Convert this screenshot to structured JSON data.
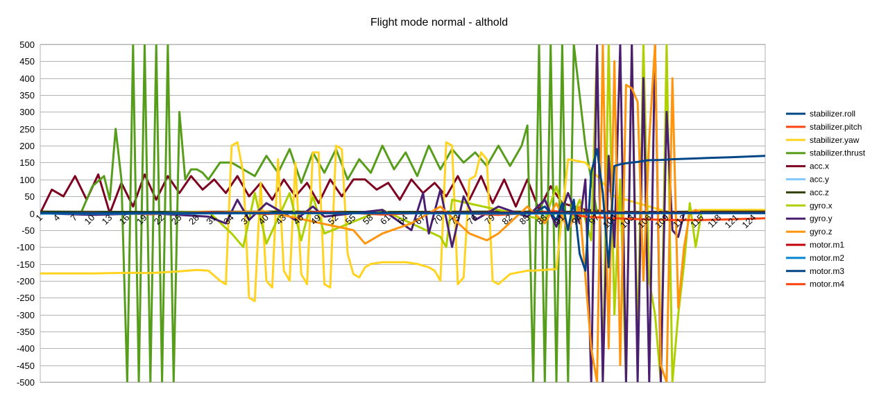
{
  "chart_data": {
    "type": "line",
    "title": "Flight mode normal - althold",
    "xlabel": "",
    "ylabel": "",
    "ylim": [
      -500,
      500
    ],
    "yticks": [
      -500,
      -450,
      -400,
      -350,
      -300,
      -250,
      -200,
      -150,
      -100,
      -50,
      0,
      50,
      100,
      150,
      200,
      250,
      300,
      350,
      400,
      450,
      500
    ],
    "xlim": [
      1,
      126
    ],
    "xticks": [
      1,
      4,
      7,
      10,
      13,
      16,
      19,
      22,
      25,
      28,
      31,
      34,
      37,
      40,
      43,
      46,
      49,
      52,
      55,
      58,
      61,
      64,
      67,
      70,
      73,
      76,
      79,
      82,
      85,
      88,
      91,
      94,
      97,
      100,
      103,
      106,
      109,
      112,
      115,
      118,
      121,
      124
    ],
    "grid": true,
    "legend_position": "right",
    "series": [
      {
        "name": "stabilizer.roll",
        "color": "#004586",
        "x": [
          1,
          10,
          20,
          30,
          40,
          50,
          60,
          70,
          80,
          86,
          88,
          90,
          91,
          92,
          93,
          94,
          95,
          96,
          97,
          98,
          99,
          100,
          101,
          102,
          103,
          104,
          105,
          106,
          108,
          110,
          115,
          120,
          126
        ],
        "values": [
          0,
          0,
          0,
          0,
          0,
          0,
          0,
          0,
          0,
          0,
          20,
          -20,
          30,
          -50,
          40,
          -120,
          -170,
          120,
          190,
          60,
          -160,
          140,
          145,
          148,
          150,
          152,
          155,
          157,
          158,
          160,
          163,
          166,
          170
        ]
      },
      {
        "name": "stabilizer.pitch",
        "color": "#ff420e",
        "x": [
          1,
          10,
          20,
          30,
          40,
          50,
          60,
          70,
          80,
          90,
          95,
          100,
          105,
          110,
          115,
          120,
          126
        ],
        "values": [
          0,
          2,
          -3,
          4,
          -2,
          5,
          -4,
          3,
          -5,
          6,
          -10,
          -15,
          -18,
          -20,
          -20,
          -18,
          -15
        ]
      },
      {
        "name": "stabilizer.yaw",
        "color": "#ffd320",
        "x": [
          1,
          10,
          17,
          20,
          25,
          28,
          30,
          32,
          33,
          34,
          35,
          36,
          37,
          38,
          39,
          40,
          41,
          42,
          43,
          44,
          45,
          46,
          47,
          48,
          49,
          50,
          51,
          52,
          53,
          54,
          55,
          56,
          57,
          58,
          60,
          62,
          64,
          66,
          68,
          69,
          70,
          71,
          72,
          73,
          74,
          75,
          76,
          77,
          78,
          79,
          80,
          82,
          85,
          86,
          88,
          90,
          92,
          95,
          97,
          100,
          110,
          115,
          126
        ],
        "values": [
          -178,
          -178,
          -176,
          -177,
          -172,
          -168,
          -170,
          -200,
          -210,
          200,
          210,
          120,
          -250,
          -260,
          90,
          -200,
          -220,
          160,
          -170,
          -200,
          150,
          -180,
          -210,
          180,
          180,
          -210,
          -220,
          200,
          190,
          -120,
          -180,
          -190,
          -160,
          -150,
          -145,
          -145,
          -145,
          -150,
          -160,
          -170,
          -200,
          210,
          200,
          -210,
          -190,
          100,
          110,
          180,
          160,
          -200,
          -210,
          -180,
          -170,
          -170,
          -168,
          -165,
          160,
          150,
          110,
          50,
          0,
          10,
          10
        ]
      },
      {
        "name": "stabilizer.thrust",
        "color": "#579d1c",
        "x": [
          1,
          8,
          10,
          12,
          13,
          14,
          15,
          16,
          17,
          18,
          19,
          20,
          21,
          22,
          23,
          24,
          25,
          26,
          27,
          28,
          29,
          30,
          32,
          34,
          36,
          38,
          40,
          42,
          44,
          46,
          48,
          50,
          52,
          54,
          56,
          58,
          60,
          62,
          64,
          66,
          68,
          70,
          72,
          74,
          76,
          78,
          80,
          82,
          84,
          85,
          86,
          87,
          88,
          89,
          90,
          91,
          92,
          93,
          94,
          95,
          96,
          97,
          98,
          100,
          105,
          110,
          115,
          120,
          126
        ],
        "values": [
          0,
          0,
          80,
          110,
          40,
          250,
          100,
          -500,
          500,
          -500,
          500,
          -500,
          500,
          -500,
          500,
          -500,
          300,
          100,
          130,
          130,
          120,
          100,
          150,
          150,
          130,
          110,
          170,
          120,
          190,
          90,
          180,
          120,
          190,
          100,
          160,
          120,
          200,
          130,
          180,
          110,
          200,
          130,
          190,
          150,
          180,
          140,
          200,
          140,
          200,
          260,
          -500,
          500,
          -500,
          500,
          -500,
          500,
          -500,
          500,
          350,
          200,
          100,
          0,
          0,
          0,
          0,
          0,
          0,
          0,
          0
        ]
      },
      {
        "name": "acc.x",
        "color": "#7e0021",
        "x": [
          1,
          3,
          5,
          7,
          9,
          11,
          13,
          15,
          17,
          19,
          21,
          23,
          25,
          27,
          29,
          31,
          33,
          35,
          37,
          39,
          41,
          43,
          45,
          47,
          49,
          51,
          53,
          55,
          57,
          59,
          61,
          63,
          65,
          67,
          69,
          71,
          73,
          75,
          77,
          79,
          81,
          83,
          85,
          87,
          89,
          91,
          95,
          100,
          110,
          120,
          126
        ],
        "values": [
          0,
          70,
          50,
          110,
          40,
          115,
          0,
          90,
          20,
          115,
          40,
          110,
          60,
          110,
          70,
          100,
          60,
          110,
          50,
          90,
          40,
          100,
          50,
          90,
          30,
          100,
          50,
          100,
          100,
          70,
          90,
          40,
          100,
          60,
          90,
          50,
          110,
          40,
          110,
          30,
          100,
          20,
          100,
          10,
          80,
          30,
          10,
          5,
          0,
          0,
          0
        ]
      },
      {
        "name": "acc.y",
        "color": "#83caff",
        "x": [
          1,
          20,
          40,
          60,
          80,
          100,
          126
        ],
        "values": [
          0,
          0,
          0,
          0,
          0,
          0,
          0
        ]
      },
      {
        "name": "acc.z",
        "color": "#314004",
        "x": [
          1,
          20,
          40,
          60,
          80,
          100,
          126
        ],
        "values": [
          5,
          4,
          5,
          4,
          5,
          4,
          5
        ]
      },
      {
        "name": "gyro.x",
        "color": "#aecf00",
        "x": [
          1,
          20,
          30,
          34,
          36,
          38,
          40,
          44,
          46,
          48,
          50,
          60,
          70,
          71,
          72,
          80,
          88,
          90,
          92,
          94,
          96,
          97,
          98,
          99,
          100,
          101,
          102,
          103,
          104,
          105,
          106,
          107,
          108,
          109,
          110,
          111,
          112,
          113,
          114,
          115,
          126
        ],
        "values": [
          0,
          0,
          5,
          -60,
          -100,
          60,
          -90,
          60,
          -80,
          50,
          -60,
          10,
          -70,
          -100,
          40,
          10,
          -20,
          80,
          -50,
          40,
          -80,
          500,
          -500,
          500,
          -300,
          100,
          -500,
          500,
          -400,
          500,
          -200,
          -300,
          -500,
          500,
          -500,
          -300,
          -150,
          30,
          -100,
          0,
          0
        ]
      },
      {
        "name": "gyro.y",
        "color": "#4b1f6f",
        "x": [
          1,
          10,
          20,
          30,
          33,
          35,
          37,
          40,
          45,
          48,
          50,
          60,
          65,
          67,
          68,
          70,
          72,
          74,
          76,
          80,
          85,
          88,
          90,
          92,
          94,
          95,
          96,
          97,
          98,
          99,
          100,
          101,
          102,
          103,
          104,
          105,
          106,
          107,
          108,
          109,
          110,
          111,
          112,
          113,
          114,
          115,
          126
        ],
        "values": [
          0,
          -5,
          0,
          -10,
          -30,
          40,
          -20,
          30,
          -20,
          20,
          -10,
          10,
          -50,
          60,
          -60,
          70,
          -100,
          50,
          -20,
          20,
          -10,
          40,
          -40,
          60,
          -30,
          100,
          -500,
          500,
          -500,
          170,
          -100,
          500,
          -500,
          500,
          -500,
          400,
          -500,
          500,
          -500,
          300,
          -50,
          -70,
          0,
          0,
          0,
          0,
          0
        ]
      },
      {
        "name": "gyro.z",
        "color": "#ff950e",
        "x": [
          1,
          20,
          40,
          55,
          57,
          60,
          65,
          70,
          75,
          78,
          80,
          85,
          88,
          90,
          92,
          94,
          96,
          97,
          98,
          99,
          100,
          101,
          102,
          103,
          104,
          105,
          106,
          107,
          108,
          109,
          110,
          111,
          112,
          113,
          114,
          115,
          126
        ],
        "values": [
          0,
          0,
          5,
          -50,
          -90,
          -60,
          -30,
          20,
          -60,
          -80,
          -60,
          20,
          -30,
          30,
          -50,
          20,
          -400,
          -500,
          500,
          -400,
          450,
          -450,
          380,
          370,
          330,
          -200,
          220,
          500,
          -450,
          -500,
          400,
          -280,
          -100,
          0,
          10,
          0,
          0
        ]
      },
      {
        "name": "motor.m1",
        "color": "#c5000b",
        "x": [
          1,
          20,
          40,
          60,
          80,
          100,
          110,
          126
        ],
        "values": [
          0,
          0,
          1,
          1,
          2,
          2,
          2,
          2
        ]
      },
      {
        "name": "motor.m2",
        "color": "#0084d1",
        "x": [
          1,
          20,
          40,
          60,
          80,
          100,
          126
        ],
        "values": [
          -1,
          -1,
          0,
          0,
          -1,
          0,
          0
        ]
      },
      {
        "name": "motor.m3",
        "color": "#004586",
        "x": [
          1,
          20,
          40,
          60,
          80,
          100,
          126
        ],
        "values": [
          1,
          1,
          1,
          1,
          1,
          1,
          1
        ]
      },
      {
        "name": "motor.m4",
        "color": "#ff420e",
        "x": [
          1,
          20,
          40,
          60,
          80,
          100,
          126
        ],
        "values": [
          0,
          0,
          0,
          0,
          0,
          0,
          0
        ]
      }
    ]
  }
}
